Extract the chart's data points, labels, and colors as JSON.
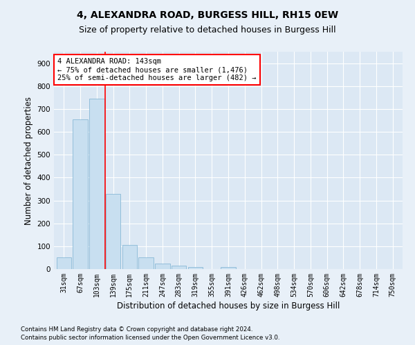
{
  "title": "4, ALEXANDRA ROAD, BURGESS HILL, RH15 0EW",
  "subtitle": "Size of property relative to detached houses in Burgess Hill",
  "xlabel": "Distribution of detached houses by size in Burgess Hill",
  "ylabel": "Number of detached properties",
  "categories": [
    "31sqm",
    "67sqm",
    "103sqm",
    "139sqm",
    "175sqm",
    "211sqm",
    "247sqm",
    "283sqm",
    "319sqm",
    "355sqm",
    "391sqm",
    "426sqm",
    "462sqm",
    "498sqm",
    "534sqm",
    "570sqm",
    "606sqm",
    "642sqm",
    "678sqm",
    "714sqm",
    "750sqm"
  ],
  "values": [
    50,
    655,
    745,
    328,
    105,
    52,
    25,
    15,
    10,
    0,
    10,
    0,
    0,
    0,
    0,
    0,
    0,
    0,
    0,
    0,
    0
  ],
  "bar_color": "#c8dff0",
  "bar_edge_color": "#7ab0d0",
  "annotation_text": "4 ALEXANDRA ROAD: 143sqm\n← 75% of detached houses are smaller (1,476)\n25% of semi-detached houses are larger (482) →",
  "annotation_box_color": "white",
  "annotation_box_edge_color": "red",
  "vline_x": 3.0,
  "ylim": [
    0,
    950
  ],
  "yticks": [
    0,
    100,
    200,
    300,
    400,
    500,
    600,
    700,
    800,
    900
  ],
  "footer_line1": "Contains HM Land Registry data © Crown copyright and database right 2024.",
  "footer_line2": "Contains public sector information licensed under the Open Government Licence v3.0.",
  "background_color": "#e8f0f8",
  "plot_background_color": "#dce8f4",
  "grid_color": "white",
  "title_fontsize": 10,
  "subtitle_fontsize": 9,
  "tick_fontsize": 7,
  "ylabel_fontsize": 8.5,
  "xlabel_fontsize": 8.5,
  "annotation_fontsize": 7.5
}
